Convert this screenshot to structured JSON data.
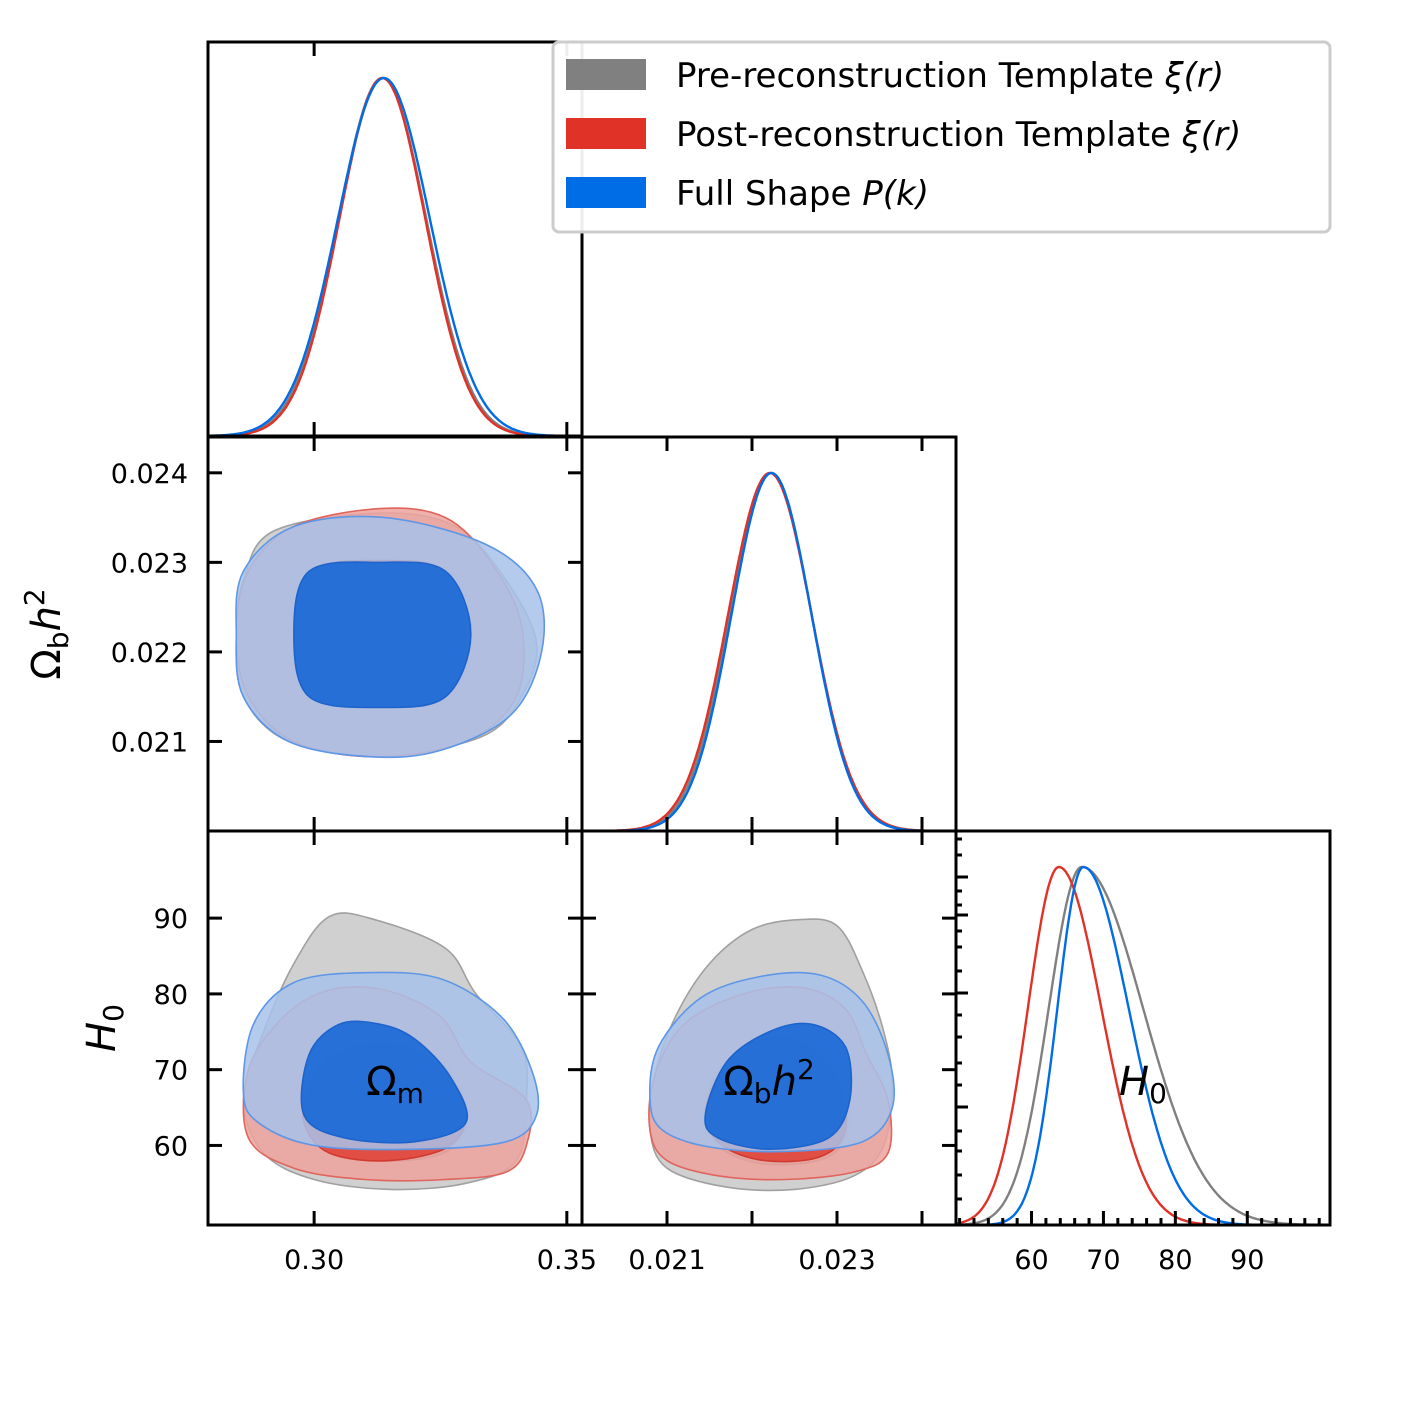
{
  "chart_data": {
    "type": "corner",
    "legend": {
      "placement": "top-right",
      "entries": [
        {
          "id": "pre",
          "label": "Pre-reconstruction Template",
          "math": "ξ(r)",
          "color": "#808080"
        },
        {
          "id": "post",
          "label": "Post-reconstruction Template",
          "math": "ξ(r)",
          "color": "#e03226"
        },
        {
          "id": "fs",
          "label": "Full Shape",
          "math": "P(k)",
          "color": "#006ce6"
        }
      ]
    },
    "parameters": [
      {
        "id": "om",
        "label": "Ω",
        "sub": "m",
        "range": [
          0.279,
          0.353
        ],
        "ticks": [
          0.3,
          0.35
        ],
        "tick_labels": [
          "0.30",
          "0.35"
        ]
      },
      {
        "id": "obh2",
        "label": "Ω",
        "sub": "b",
        "suffix": "h",
        "sup": "2",
        "range": [
          0.02,
          0.0244
        ],
        "ticks": [
          0.021,
          0.022,
          0.023,
          0.024
        ],
        "tick_labels": [
          "0.021",
          "0.022",
          "0.023",
          "0.024"
        ],
        "x_tick_labels": [
          "0.021",
          "0.023"
        ]
      },
      {
        "id": "h0",
        "label": "H",
        "sub": "0",
        "range": [
          49.5,
          101.5
        ],
        "ticks": [
          60,
          70,
          80,
          90
        ],
        "tick_labels": [
          "60",
          "70",
          "80",
          "90"
        ]
      }
    ],
    "marginals": {
      "om": [
        {
          "series": "pre",
          "mean": 0.3135,
          "sigma": 0.0087
        },
        {
          "series": "post",
          "mean": 0.3135,
          "sigma": 0.0085
        },
        {
          "series": "fs",
          "mean": 0.3138,
          "sigma": 0.0091
        }
      ],
      "obh2": [
        {
          "series": "pre",
          "mean": 0.02222,
          "sigma": 0.00048
        },
        {
          "series": "post",
          "mean": 0.02221,
          "sigma": 0.00049
        },
        {
          "series": "fs",
          "mean": 0.02223,
          "sigma": 0.00047
        }
      ],
      "h0": [
        {
          "series": "pre",
          "mode": 67.0,
          "sigma_left": 4.6,
          "sigma_right": 8.5
        },
        {
          "series": "post",
          "mode": 63.8,
          "sigma_left": 4.3,
          "sigma_right": 5.9
        },
        {
          "series": "fs",
          "mode": 67.2,
          "sigma_left": 3.6,
          "sigma_right": 6.3
        }
      ]
    },
    "contours_2d": [
      {
        "x": "om",
        "y": "obh2",
        "series": "pre",
        "c95": [
          [
            0.2846,
            0.0222
          ],
          [
            0.286,
            0.0228
          ],
          [
            0.292,
            0.02335
          ],
          [
            0.313,
            0.02355
          ],
          [
            0.328,
            0.0234
          ],
          [
            0.338,
            0.0228
          ],
          [
            0.344,
            0.0221
          ],
          [
            0.341,
            0.0215
          ],
          [
            0.333,
            0.02105
          ],
          [
            0.313,
            0.02085
          ],
          [
            0.295,
            0.021
          ],
          [
            0.286,
            0.0215
          ]
        ],
        "c68": [
          [
            0.296,
            0.0222
          ],
          [
            0.299,
            0.02285
          ],
          [
            0.313,
            0.023
          ],
          [
            0.327,
            0.0229
          ],
          [
            0.331,
            0.0222
          ],
          [
            0.327,
            0.0215
          ],
          [
            0.313,
            0.0214
          ],
          [
            0.299,
            0.0215
          ]
        ]
      },
      {
        "x": "om",
        "y": "obh2",
        "series": "post",
        "c95": [
          [
            0.2846,
            0.0222
          ],
          [
            0.287,
            0.0229
          ],
          [
            0.296,
            0.0234
          ],
          [
            0.313,
            0.0236
          ],
          [
            0.326,
            0.0235
          ],
          [
            0.335,
            0.023
          ],
          [
            0.341,
            0.0223
          ],
          [
            0.34,
            0.0215
          ],
          [
            0.33,
            0.021
          ],
          [
            0.312,
            0.02083
          ],
          [
            0.296,
            0.021
          ],
          [
            0.287,
            0.0215
          ]
        ],
        "c68": [
          [
            0.296,
            0.0222
          ],
          [
            0.299,
            0.0229
          ],
          [
            0.313,
            0.02302
          ],
          [
            0.326,
            0.0229
          ],
          [
            0.33,
            0.0222
          ],
          [
            0.326,
            0.0215
          ],
          [
            0.313,
            0.0214
          ],
          [
            0.299,
            0.0215
          ]
        ]
      },
      {
        "x": "om",
        "y": "obh2",
        "series": "fs",
        "c95": [
          [
            0.2846,
            0.0222
          ],
          [
            0.286,
            0.0229
          ],
          [
            0.296,
            0.0234
          ],
          [
            0.314,
            0.0235
          ],
          [
            0.334,
            0.0232
          ],
          [
            0.344,
            0.0227
          ],
          [
            0.345,
            0.022
          ],
          [
            0.339,
            0.0213
          ],
          [
            0.325,
            0.0209
          ],
          [
            0.311,
            0.02083
          ],
          [
            0.295,
            0.021
          ],
          [
            0.286,
            0.0215
          ]
        ],
        "c68": [
          [
            0.296,
            0.0222
          ],
          [
            0.299,
            0.0229
          ],
          [
            0.313,
            0.023
          ],
          [
            0.326,
            0.0229
          ],
          [
            0.331,
            0.0222
          ],
          [
            0.326,
            0.0215
          ],
          [
            0.313,
            0.02138
          ],
          [
            0.299,
            0.0215
          ]
        ]
      },
      {
        "x": "om",
        "y": "h0",
        "series": "pre",
        "c95": [
          [
            0.286,
            0.0
          ],
          [
            0.286,
            66
          ],
          [
            0.29,
            75
          ],
          [
            0.296,
            84
          ],
          [
            0.303,
            90.2
          ],
          [
            0.312,
            89.8
          ],
          [
            0.326,
            86
          ],
          [
            0.332,
            80
          ],
          [
            0.341,
            73
          ],
          [
            0.342,
            66
          ],
          [
            0.34,
            58
          ],
          [
            0.33,
            55
          ],
          [
            0.315,
            54.2
          ],
          [
            0.3,
            55.5
          ],
          [
            0.29,
            59
          ]
        ],
        "c68": [
          [
            0.296,
            0.0
          ],
          [
            0.298,
            68
          ],
          [
            0.304,
            73
          ],
          [
            0.314,
            74.5
          ],
          [
            0.324,
            72
          ],
          [
            0.33,
            66
          ],
          [
            0.328,
            60
          ],
          [
            0.318,
            58
          ],
          [
            0.305,
            59
          ],
          [
            0.299,
            63
          ]
        ]
      },
      {
        "x": "om",
        "y": "h0",
        "series": "post",
        "c95": [
          [
            0.286,
            0.0
          ],
          [
            0.287,
            70
          ],
          [
            0.294,
            77
          ],
          [
            0.303,
            80.5
          ],
          [
            0.314,
            80.5
          ],
          [
            0.325,
            77
          ],
          [
            0.331,
            71
          ],
          [
            0.342,
            66
          ],
          [
            0.342,
            60
          ],
          [
            0.338,
            56.5
          ],
          [
            0.326,
            55.5
          ],
          [
            0.31,
            55.5
          ],
          [
            0.296,
            57
          ],
          [
            0.287,
            61
          ]
        ],
        "c68": [
          [
            0.296,
            0.0
          ],
          [
            0.299,
            68
          ],
          [
            0.304,
            72
          ],
          [
            0.314,
            73.5
          ],
          [
            0.324,
            71
          ],
          [
            0.33,
            65
          ],
          [
            0.327,
            60
          ],
          [
            0.315,
            58
          ],
          [
            0.303,
            59
          ],
          [
            0.298,
            63
          ]
        ]
      },
      {
        "x": "om",
        "y": "h0",
        "series": "fs",
        "c95": [
          [
            0.286,
            0.0
          ],
          [
            0.288,
            76
          ],
          [
            0.296,
            81.5
          ],
          [
            0.31,
            82.8
          ],
          [
            0.325,
            82
          ],
          [
            0.337,
            77
          ],
          [
            0.343,
            70
          ],
          [
            0.344,
            64
          ],
          [
            0.338,
            60.5
          ],
          [
            0.32,
            59.5
          ],
          [
            0.3,
            60
          ],
          [
            0.289,
            63
          ],
          [
            0.286,
            67
          ]
        ],
        "c68": [
          [
            0.296,
            0.0
          ],
          [
            0.299,
            72
          ],
          [
            0.305,
            76
          ],
          [
            0.313,
            76
          ],
          [
            0.32,
            74
          ],
          [
            0.327,
            69
          ],
          [
            0.33,
            63
          ],
          [
            0.32,
            60.5
          ],
          [
            0.306,
            61
          ],
          [
            0.298,
            64
          ]
        ]
      },
      {
        "x": "obh2",
        "y": "h0",
        "series": "pre",
        "c95": [
          [
            0.0208,
            0.0
          ],
          [
            0.02085,
            69
          ],
          [
            0.0211,
            77
          ],
          [
            0.0215,
            84
          ],
          [
            0.022,
            88.5
          ],
          [
            0.02255,
            89.8
          ],
          [
            0.023,
            89
          ],
          [
            0.0233,
            83
          ],
          [
            0.02355,
            75
          ],
          [
            0.02365,
            68
          ],
          [
            0.02355,
            60
          ],
          [
            0.0232,
            56
          ],
          [
            0.0225,
            54.2
          ],
          [
            0.0217,
            54.5
          ],
          [
            0.021,
            57
          ],
          [
            0.0208,
            62
          ]
        ],
        "c68": [
          [
            0.02148,
            0.0
          ],
          [
            0.0216,
            70
          ],
          [
            0.02205,
            73.5
          ],
          [
            0.02255,
            74
          ],
          [
            0.023,
            70
          ],
          [
            0.02315,
            63
          ],
          [
            0.0229,
            58.5
          ],
          [
            0.0222,
            57.5
          ],
          [
            0.02165,
            59.5
          ],
          [
            0.02145,
            64
          ]
        ]
      },
      {
        "x": "obh2",
        "y": "h0",
        "series": "post",
        "c95": [
          [
            0.0208,
            0.0
          ],
          [
            0.02085,
            69
          ],
          [
            0.0212,
            76
          ],
          [
            0.0219,
            80
          ],
          [
            0.0226,
            80.8
          ],
          [
            0.0231,
            78
          ],
          [
            0.02335,
            72
          ],
          [
            0.0236,
            66
          ],
          [
            0.0236,
            59
          ],
          [
            0.0232,
            56.5
          ],
          [
            0.0224,
            55.5
          ],
          [
            0.0216,
            56
          ],
          [
            0.021,
            58
          ],
          [
            0.0208,
            62
          ]
        ],
        "c68": [
          [
            0.02148,
            0.0
          ],
          [
            0.02165,
            70
          ],
          [
            0.0221,
            74
          ],
          [
            0.0226,
            73.5
          ],
          [
            0.023,
            69
          ],
          [
            0.0231,
            62
          ],
          [
            0.0228,
            58.5
          ],
          [
            0.02215,
            58
          ],
          [
            0.02165,
            60
          ],
          [
            0.02145,
            64
          ]
        ]
      },
      {
        "x": "obh2",
        "y": "h0",
        "series": "fs",
        "c95": [
          [
            0.0208,
            0.0
          ],
          [
            0.0209,
            73
          ],
          [
            0.0214,
            79.5
          ],
          [
            0.0221,
            82.3
          ],
          [
            0.0228,
            82.5
          ],
          [
            0.0233,
            79
          ],
          [
            0.0236,
            72
          ],
          [
            0.02365,
            65
          ],
          [
            0.0233,
            60.5
          ],
          [
            0.0224,
            59.2
          ],
          [
            0.0215,
            59.8
          ],
          [
            0.02095,
            62
          ],
          [
            0.0208,
            66
          ]
        ],
        "c68": [
          [
            0.02148,
            0.0
          ],
          [
            0.0217,
            71
          ],
          [
            0.0222,
            75
          ],
          [
            0.0227,
            76
          ],
          [
            0.0231,
            73
          ],
          [
            0.02315,
            66
          ],
          [
            0.0229,
            61
          ],
          [
            0.0222,
            59.5
          ],
          [
            0.0216,
            61
          ],
          [
            0.02145,
            64
          ]
        ]
      }
    ]
  }
}
